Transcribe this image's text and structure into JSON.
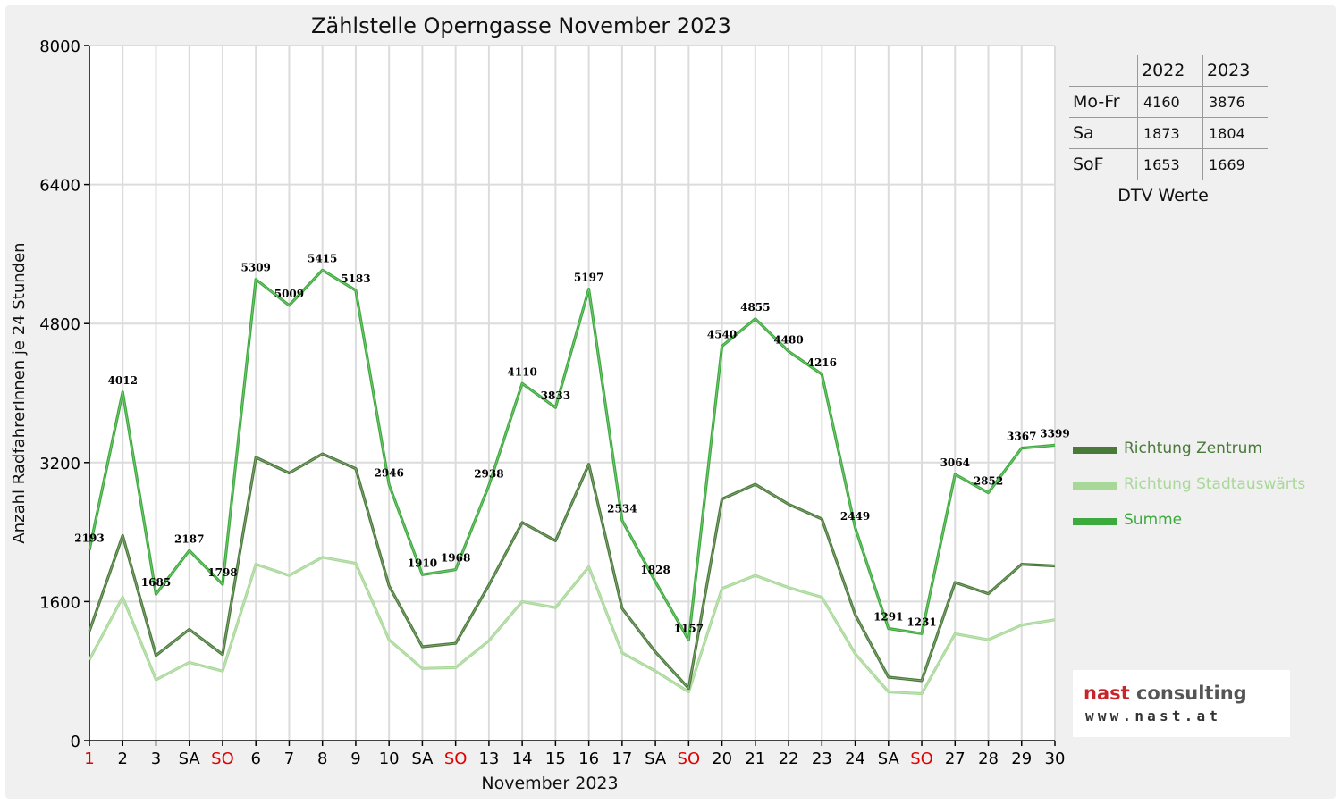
{
  "chart_data": {
    "type": "line",
    "title": "Zählstelle Operngasse November 2023",
    "xlabel": "November 2023",
    "ylabel": "Anzahl RadfahrerInnen je 24 Stunden",
    "ylim": [
      0,
      8000
    ],
    "yticks": [
      "0",
      "1600",
      "3200",
      "4800",
      "6400",
      "8000"
    ],
    "grid": true,
    "legend_position": "right",
    "categories": [
      "1",
      "2",
      "3",
      "SA",
      "SO",
      "6",
      "7",
      "8",
      "9",
      "10",
      "SA",
      "SO",
      "13",
      "14",
      "15",
      "16",
      "17",
      "SA",
      "SO",
      "20",
      "21",
      "22",
      "23",
      "24",
      "SA",
      "SO",
      "27",
      "28",
      "29",
      "30"
    ],
    "category_colors": [
      "#e00000",
      "#000000",
      "#000000",
      "#000000",
      "#e00000",
      "#000000",
      "#000000",
      "#000000",
      "#000000",
      "#000000",
      "#000000",
      "#e00000",
      "#000000",
      "#000000",
      "#000000",
      "#000000",
      "#000000",
      "#000000",
      "#e00000",
      "#000000",
      "#000000",
      "#000000",
      "#000000",
      "#000000",
      "#000000",
      "#e00000",
      "#000000",
      "#000000",
      "#000000",
      "#000000"
    ],
    "series": [
      {
        "name": "Richtung Zentrum",
        "color": "#4a7a3a",
        "values": [
          1260,
          2360,
          980,
          1280,
          990,
          3260,
          3080,
          3300,
          3130,
          1780,
          1080,
          1120,
          1790,
          2510,
          2300,
          3180,
          1520,
          1020,
          600,
          2780,
          2950,
          2720,
          2550,
          1450,
          730,
          690,
          1820,
          1690,
          2030,
          2010
        ]
      },
      {
        "name": "Richtung Stadtauswärts",
        "color": "#a8d898",
        "values": [
          930,
          1650,
          700,
          900,
          800,
          2030,
          1900,
          2110,
          2040,
          1160,
          830,
          840,
          1150,
          1600,
          1530,
          2000,
          1010,
          800,
          560,
          1750,
          1900,
          1760,
          1650,
          1000,
          560,
          540,
          1230,
          1160,
          1330,
          1390
        ]
      },
      {
        "name": "Summe",
        "color": "#3daa3d",
        "values": [
          2193,
          4012,
          1685,
          2187,
          1798,
          5309,
          5009,
          5415,
          5183,
          2946,
          1910,
          1968,
          2938,
          4110,
          3833,
          5197,
          2534,
          1828,
          1157,
          4540,
          4855,
          4480,
          4216,
          2449,
          1291,
          1231,
          3064,
          2852,
          3367,
          3399
        ]
      }
    ],
    "data_labels": [
      "2193",
      "4012",
      "1685",
      "2187",
      "1798",
      "5309",
      "5009",
      "5415",
      "5183",
      "2946",
      "1910",
      "1968",
      "2938",
      "4110",
      "3833",
      "5197",
      "2534",
      "1828",
      "1157",
      "4540",
      "4855",
      "4480",
      "4216",
      "2449",
      "1291",
      "1231",
      "3064",
      "2852",
      "3367",
      "3399"
    ]
  },
  "dtv": {
    "headers": [
      "2022",
      "2023"
    ],
    "rows": [
      {
        "label": "Mo-Fr",
        "v2022": "4160",
        "v2023": "3876"
      },
      {
        "label": "Sa",
        "v2022": "1873",
        "v2023": "1804"
      },
      {
        "label": "SoF",
        "v2022": "1653",
        "v2023": "1669"
      }
    ],
    "caption": "DTV Werte"
  },
  "logo": {
    "brand": "nast",
    "word": " consulting",
    "url": "www.nast.at"
  }
}
